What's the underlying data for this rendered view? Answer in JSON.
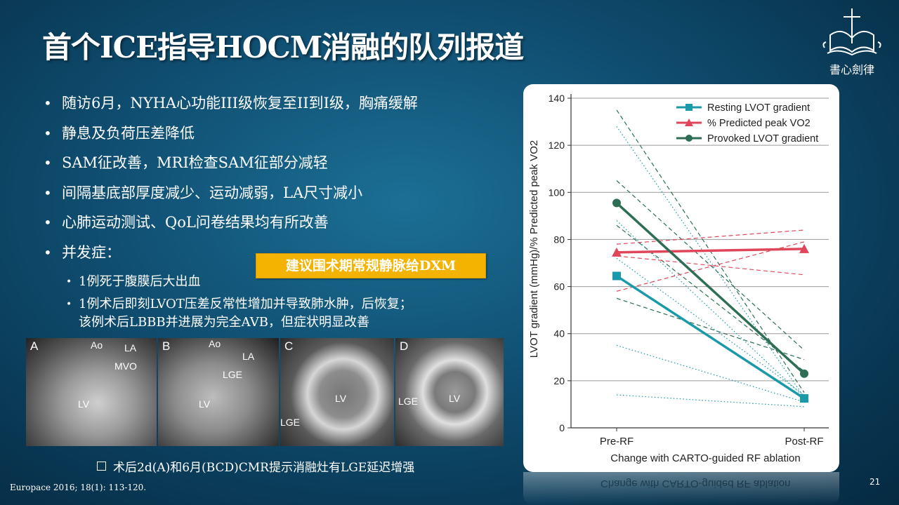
{
  "slide": {
    "title": "首个ICE指导HOCM消融的队列报道",
    "logo_text": "書心劍律",
    "page_number": "21",
    "reference": "Europace 2016; 18(1): 113-120."
  },
  "bullets": [
    "随访6月，NYHA心功能III级恢复至II到I级，胸痛缓解",
    "静息及负荷压差降低",
    "SAM征改善，MRI检查SAM征部分减轻",
    "间隔基底部厚度减少、运动减弱，LA尺寸减小",
    "心肺运动测试、QoL问卷结果均有所改善",
    "并发症："
  ],
  "sub_bullets": [
    "1例死于腹膜后大出血",
    "1例术后即刻LVOT压差反常性增加并导致肺水肿，后恢复；",
    "该例术后LBBB并进展为完全AVB，但症状明显改善"
  ],
  "highlight": "建议围术期常规静脉给DXM",
  "mri": {
    "panels": [
      {
        "letter": "A",
        "labels": [
          "Ao",
          "LA",
          "MVO",
          "LV"
        ]
      },
      {
        "letter": "B",
        "labels": [
          "Ao",
          "LA",
          "LGE",
          "LV"
        ]
      },
      {
        "letter": "C",
        "labels": [
          "LV",
          "LGE"
        ]
      },
      {
        "letter": "D",
        "labels": [
          "LGE",
          "LV"
        ]
      }
    ],
    "caption": "术后2d(A)和6月(BCD)CMR提示消融灶有LGE延迟增强"
  },
  "chart_data": {
    "type": "line",
    "xlabel": "Change with CARTO-guided RF ablation",
    "ylabel": "LVOT gradient (mmHg)/% Predicted peak VO2",
    "categories": [
      "Pre-RF",
      "Post-RF"
    ],
    "ylim": [
      0,
      140
    ],
    "yticks": [
      0,
      20,
      40,
      60,
      80,
      100,
      120,
      140
    ],
    "legend_position": "top-right",
    "series": [
      {
        "name": "Resting LVOT gradient",
        "color": "#1a9aa8",
        "marker": "square",
        "values": [
          64.5,
          12.5
        ]
      },
      {
        "name": "% Predicted peak VO2",
        "color": "#e0465a",
        "marker": "triangle",
        "values": [
          74.5,
          76
        ]
      },
      {
        "name": "Provoked LVOT gradient",
        "color": "#2d6e54",
        "marker": "circle",
        "values": [
          95.5,
          23
        ]
      }
    ],
    "individual_lines": [
      {
        "style": "dashed",
        "color": "#2d6e54",
        "values": [
          135,
          15
        ]
      },
      {
        "style": "dashed",
        "color": "#2d6e54",
        "values": [
          105,
          33
        ]
      },
      {
        "style": "dashed",
        "color": "#2d6e54",
        "values": [
          86,
          24
        ]
      },
      {
        "style": "dashed",
        "color": "#2d6e54",
        "values": [
          55,
          29
        ]
      },
      {
        "style": "dotted",
        "color": "#1a9aa8",
        "values": [
          128,
          13
        ]
      },
      {
        "style": "dotted",
        "color": "#1a9aa8",
        "values": [
          88,
          13
        ]
      },
      {
        "style": "dotted",
        "color": "#1a9aa8",
        "values": [
          72,
          14
        ]
      },
      {
        "style": "dotted",
        "color": "#1a9aa8",
        "values": [
          35,
          11
        ]
      },
      {
        "style": "dotted",
        "color": "#1a9aa8",
        "values": [
          14,
          9
        ]
      },
      {
        "style": "dashed",
        "color": "#e0465a",
        "values": [
          78,
          84
        ]
      },
      {
        "style": "dashed",
        "color": "#e0465a",
        "values": [
          73,
          65
        ]
      },
      {
        "style": "dashed",
        "color": "#e0465a",
        "values": [
          58,
          79
        ]
      }
    ]
  }
}
